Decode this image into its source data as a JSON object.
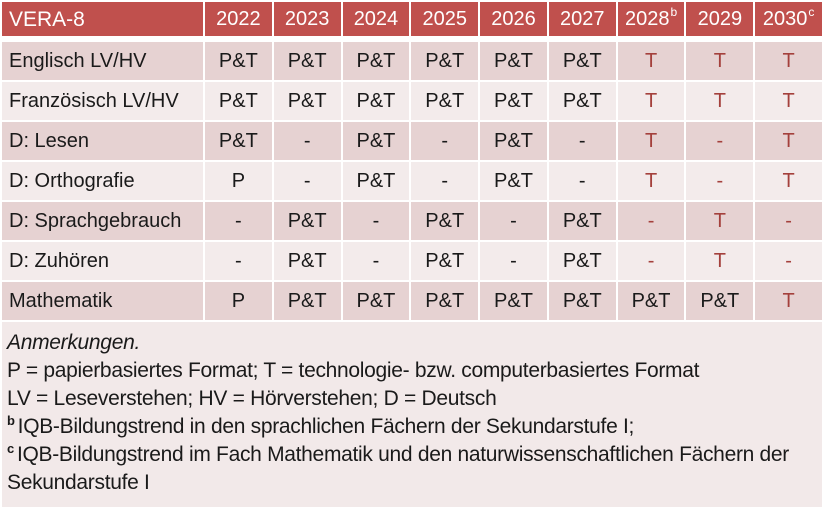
{
  "colors": {
    "header_bg": "#C0504D",
    "header_text": "#FFFFFF",
    "row_dark": "#E6D2D2",
    "row_light": "#F3EBEB",
    "notes_bg": "#F2E9E9",
    "accent_red": "#A4403C",
    "text": "#1A1A1A"
  },
  "table": {
    "title": "VERA-8",
    "columns": [
      {
        "label": "2022",
        "sup": ""
      },
      {
        "label": "2023",
        "sup": ""
      },
      {
        "label": "2024",
        "sup": ""
      },
      {
        "label": "2025",
        "sup": ""
      },
      {
        "label": "2026",
        "sup": ""
      },
      {
        "label": "2027",
        "sup": ""
      },
      {
        "label": "2028",
        "sup": "b"
      },
      {
        "label": "2029",
        "sup": ""
      },
      {
        "label": "2030",
        "sup": "c"
      }
    ],
    "rows": [
      {
        "label": "Englisch LV/HV",
        "cells": [
          {
            "t": "P&T",
            "red": false
          },
          {
            "t": "P&T",
            "red": false
          },
          {
            "t": "P&T",
            "red": false
          },
          {
            "t": "P&T",
            "red": false
          },
          {
            "t": "P&T",
            "red": false
          },
          {
            "t": "P&T",
            "red": false
          },
          {
            "t": "T",
            "red": true
          },
          {
            "t": "T",
            "red": true
          },
          {
            "t": "T",
            "red": true
          }
        ]
      },
      {
        "label": "Französisch LV/HV",
        "cells": [
          {
            "t": "P&T",
            "red": false
          },
          {
            "t": "P&T",
            "red": false
          },
          {
            "t": "P&T",
            "red": false
          },
          {
            "t": "P&T",
            "red": false
          },
          {
            "t": "P&T",
            "red": false
          },
          {
            "t": "P&T",
            "red": false
          },
          {
            "t": "T",
            "red": true
          },
          {
            "t": "T",
            "red": true
          },
          {
            "t": "T",
            "red": true
          }
        ]
      },
      {
        "label": "D: Lesen",
        "cells": [
          {
            "t": "P&T",
            "red": false
          },
          {
            "t": "-",
            "red": false
          },
          {
            "t": "P&T",
            "red": false
          },
          {
            "t": "-",
            "red": false
          },
          {
            "t": "P&T",
            "red": false
          },
          {
            "t": "-",
            "red": false
          },
          {
            "t": "T",
            "red": true
          },
          {
            "t": "-",
            "red": true
          },
          {
            "t": "T",
            "red": true
          }
        ]
      },
      {
        "label": "D: Orthografie",
        "cells": [
          {
            "t": "P",
            "red": false
          },
          {
            "t": "-",
            "red": false
          },
          {
            "t": "P&T",
            "red": false
          },
          {
            "t": "-",
            "red": false
          },
          {
            "t": "P&T",
            "red": false
          },
          {
            "t": "-",
            "red": false
          },
          {
            "t": "T",
            "red": true
          },
          {
            "t": "-",
            "red": true
          },
          {
            "t": "T",
            "red": true
          }
        ]
      },
      {
        "label": "D: Sprachgebrauch",
        "cells": [
          {
            "t": "-",
            "red": false
          },
          {
            "t": "P&T",
            "red": false
          },
          {
            "t": "-",
            "red": false
          },
          {
            "t": "P&T",
            "red": false
          },
          {
            "t": "-",
            "red": false
          },
          {
            "t": "P&T",
            "red": false
          },
          {
            "t": "-",
            "red": true
          },
          {
            "t": "T",
            "red": true
          },
          {
            "t": "-",
            "red": true
          }
        ]
      },
      {
        "label": "D: Zuhören",
        "cells": [
          {
            "t": "-",
            "red": false
          },
          {
            "t": "P&T",
            "red": false
          },
          {
            "t": "-",
            "red": false
          },
          {
            "t": "P&T",
            "red": false
          },
          {
            "t": "-",
            "red": false
          },
          {
            "t": "P&T",
            "red": false
          },
          {
            "t": "-",
            "red": true
          },
          {
            "t": "T",
            "red": true
          },
          {
            "t": "-",
            "red": true
          }
        ]
      },
      {
        "label": "Mathematik",
        "cells": [
          {
            "t": "P",
            "red": false
          },
          {
            "t": "P&T",
            "red": false
          },
          {
            "t": "P&T",
            "red": false
          },
          {
            "t": "P&T",
            "red": false
          },
          {
            "t": "P&T",
            "red": false
          },
          {
            "t": "P&T",
            "red": false
          },
          {
            "t": "P&T",
            "red": false
          },
          {
            "t": "P&T",
            "red": false
          },
          {
            "t": "T",
            "red": true
          }
        ]
      }
    ]
  },
  "notes": {
    "heading": "Anmerkungen.",
    "formats_line": "P = papierbasiertes Format; T = technologie- bzw. computerbasiertes Format",
    "abbr_line": "LV = Leseverstehen; HV = Hörverstehen; D = Deutsch",
    "note_b": {
      "marker": "b",
      "text": "IQB-Bildungstrend in den sprachlichen Fächern der Sekundarstufe I;"
    },
    "note_c": {
      "marker": "c",
      "text": "IQB-Bildungstrend im Fach Mathematik und den naturwissenschaftlichen Fächern der Sekundarstufe I"
    }
  }
}
